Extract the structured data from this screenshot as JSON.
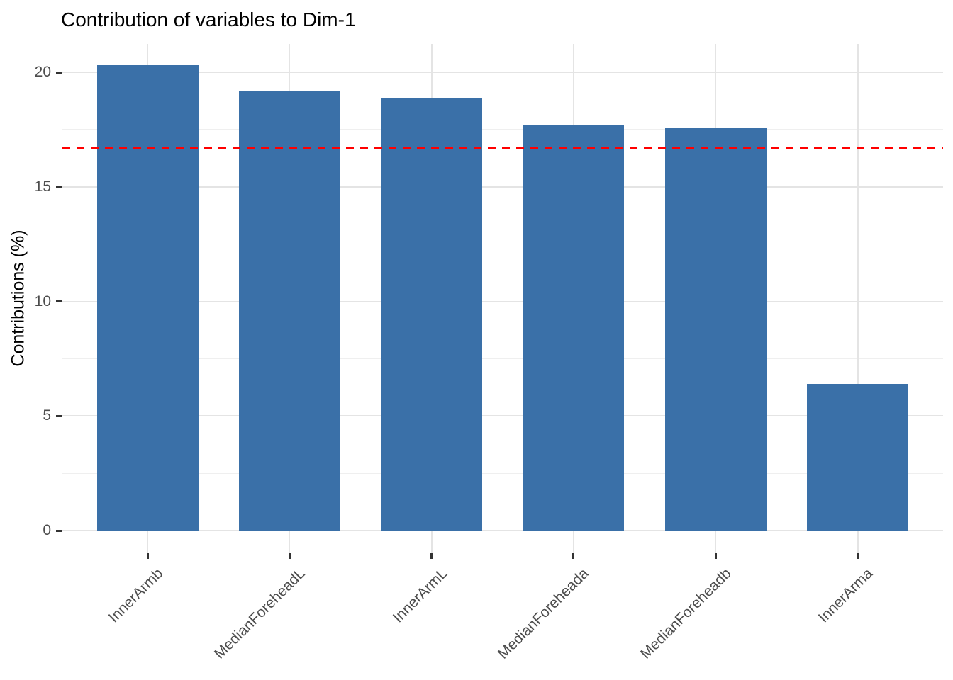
{
  "chart_data": {
    "type": "bar",
    "title": "Contribution of variables to Dim-1",
    "ylabel": "Contributions (%)",
    "xlabel": "",
    "categories": [
      "InnerArmb",
      "MedianForeheadL",
      "InnerArmL",
      "MedianForeheada",
      "MedianForeheadb",
      "InnerArma"
    ],
    "values": [
      20.3,
      19.2,
      18.9,
      17.7,
      17.55,
      6.4
    ],
    "yticks": [
      0,
      5,
      10,
      15,
      20
    ],
    "yticks_minor": [
      2.5,
      7.5,
      12.5,
      17.5
    ],
    "ylim": [
      0,
      21
    ],
    "grid": true,
    "legend": "none",
    "bar_color": "#3a70a8",
    "reference_line": {
      "value": 16.67,
      "color": "#ff0000",
      "style": "dashed"
    }
  }
}
